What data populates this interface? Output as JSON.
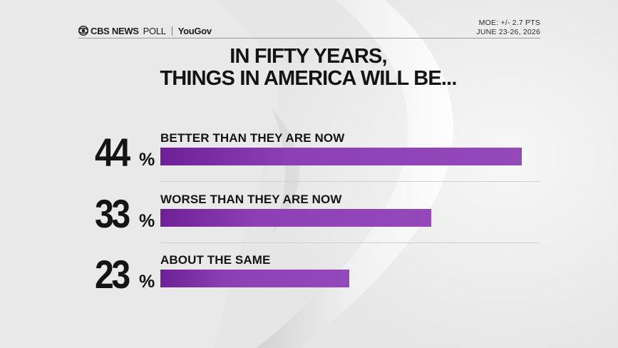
{
  "brand": {
    "cbs_news": "CBS NEWS",
    "poll": "POLL",
    "partner": "YouGov"
  },
  "moe": {
    "line1": "MOE: +/- 2.7 PTS",
    "line2": "JUNE 23-26, 2026"
  },
  "colors": {
    "bar": "#8c40b4",
    "bar_dark": "#6e2196",
    "text": "#141414",
    "background": "#ececec"
  },
  "chart_data": {
    "type": "bar",
    "orientation": "horizontal",
    "title_line1": "IN FIFTY YEARS,",
    "title_line2": "THINGS IN AMERICA WILL BE...",
    "categories": [
      "BETTER THAN THEY ARE NOW",
      "WORSE THAN THEY ARE NOW",
      "ABOUT THE SAME"
    ],
    "values": [
      44,
      33,
      23
    ],
    "value_labels": [
      "44",
      "33",
      "23"
    ],
    "unit": "%",
    "xlim": [
      0,
      44
    ]
  }
}
